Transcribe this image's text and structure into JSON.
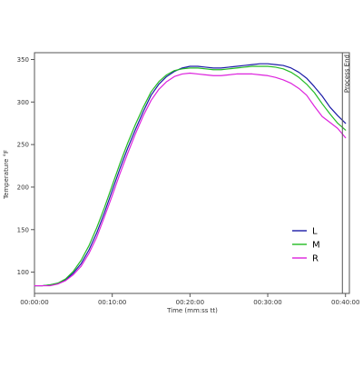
{
  "chart_data": {
    "type": "line",
    "xlabel": "Time (mm:ss tt)",
    "ylabel": "Temperature °F",
    "xlim": [
      0,
      40.5
    ],
    "ylim": [
      75,
      358
    ],
    "x_ticks": [
      {
        "value": 0,
        "label": "00:00:00"
      },
      {
        "value": 10,
        "label": "00:10:00"
      },
      {
        "value": 20,
        "label": "00:20:00"
      },
      {
        "value": 30,
        "label": "00:30:00"
      },
      {
        "value": 40,
        "label": "00:40:00"
      }
    ],
    "y_ticks": [
      100,
      150,
      200,
      250,
      300,
      350
    ],
    "grid": false,
    "legend_position": "bottom-right",
    "annotations": [
      {
        "type": "vertical_line",
        "x": 39.6,
        "label": "Process End"
      }
    ],
    "series": [
      {
        "name": "L",
        "color": "#1a1aa6",
        "x": [
          0,
          1,
          2,
          3,
          4,
          5,
          6,
          7,
          8,
          9,
          10,
          11,
          12,
          13,
          14,
          15,
          16,
          17,
          18,
          19,
          20,
          21,
          22,
          23,
          24,
          25,
          26,
          27,
          28,
          29,
          30,
          31,
          32,
          33,
          34,
          35,
          36,
          37,
          38,
          39,
          40
        ],
        "values": [
          84,
          84,
          85,
          87,
          91,
          99,
          110,
          126,
          146,
          170,
          196,
          222,
          246,
          268,
          289,
          308,
          321,
          330,
          336,
          340,
          342,
          342,
          341,
          340,
          340,
          341,
          342,
          343,
          344,
          345,
          345,
          344,
          343,
          340,
          335,
          328,
          318,
          307,
          294,
          284,
          275
        ]
      },
      {
        "name": "M",
        "color": "#22bb22",
        "x": [
          0,
          1,
          2,
          3,
          4,
          5,
          6,
          7,
          8,
          9,
          10,
          11,
          12,
          13,
          14,
          15,
          16,
          17,
          18,
          19,
          20,
          21,
          22,
          23,
          24,
          25,
          26,
          27,
          28,
          29,
          30,
          31,
          32,
          33,
          34,
          35,
          36,
          37,
          38,
          39,
          40
        ],
        "values": [
          84,
          84,
          85,
          87,
          92,
          101,
          114,
          131,
          152,
          176,
          202,
          228,
          252,
          274,
          294,
          312,
          324,
          332,
          337,
          339,
          340,
          340,
          339,
          338,
          338,
          339,
          340,
          341,
          342,
          342,
          342,
          341,
          339,
          335,
          329,
          321,
          311,
          298,
          286,
          275,
          267
        ]
      },
      {
        "name": "R",
        "color": "#dd22dd",
        "x": [
          0,
          1,
          2,
          3,
          4,
          5,
          6,
          7,
          8,
          9,
          10,
          11,
          12,
          13,
          14,
          15,
          16,
          17,
          18,
          19,
          20,
          21,
          22,
          23,
          24,
          25,
          26,
          27,
          28,
          29,
          30,
          31,
          32,
          33,
          34,
          35,
          36,
          37,
          38,
          39,
          40
        ],
        "values": [
          84,
          84,
          84,
          86,
          90,
          97,
          107,
          122,
          141,
          165,
          190,
          216,
          240,
          263,
          284,
          302,
          315,
          324,
          330,
          333,
          334,
          333,
          332,
          331,
          331,
          332,
          333,
          333,
          333,
          332,
          331,
          329,
          326,
          322,
          316,
          308,
          295,
          283,
          276,
          269,
          258
        ]
      }
    ]
  }
}
